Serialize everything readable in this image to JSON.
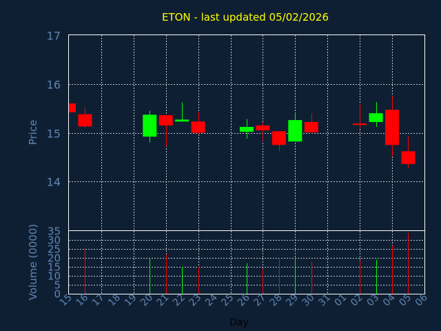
{
  "chart_data": {
    "type": "candlestick",
    "title": "ETON - last updated 05/02/2026",
    "xlabel": "Day",
    "price_panel": {
      "ylabel": "Price",
      "ylim": [
        13.0,
        17.0
      ],
      "yticks": [
        "14",
        "15",
        "16",
        "17"
      ],
      "grid": true
    },
    "volume_panel": {
      "ylabel": "Volume (0000)",
      "ylim": [
        0,
        35
      ],
      "yticks": [
        "0",
        "5",
        "10",
        "15",
        "20",
        "25",
        "30",
        "35"
      ],
      "grid": true
    },
    "colors": {
      "background": "#0f1f33",
      "up": "#00ff00",
      "down": "#ff0000",
      "title": "#ffff00",
      "axis_text": "#5f86b3",
      "grid": "#ffffff"
    },
    "x_ticks": [
      "15",
      "16",
      "17",
      "18",
      "19",
      "20",
      "21",
      "22",
      "23",
      "24",
      "25",
      "26",
      "27",
      "28",
      "29",
      "30",
      "31",
      "01",
      "02",
      "03",
      "04",
      "05",
      "06"
    ],
    "candles": [
      {
        "day": "15",
        "open": 15.6,
        "high": 15.6,
        "low": 15.42,
        "close": 15.42,
        "volume": 0
      },
      {
        "day": "16",
        "open": 15.38,
        "high": 15.52,
        "low": 15.1,
        "close": 15.13,
        "volume": 25
      },
      {
        "day": "20",
        "open": 14.92,
        "high": 15.45,
        "low": 14.8,
        "close": 15.37,
        "volume": 20
      },
      {
        "day": "21",
        "open": 15.36,
        "high": 15.36,
        "low": 14.72,
        "close": 15.15,
        "volume": 22
      },
      {
        "day": "22",
        "open": 15.23,
        "high": 15.62,
        "low": 15.23,
        "close": 15.27,
        "volume": 15
      },
      {
        "day": "23",
        "open": 15.23,
        "high": 15.43,
        "low": 14.97,
        "close": 15.0,
        "volume": 15
      },
      {
        "day": "26",
        "open": 15.02,
        "high": 15.28,
        "low": 14.88,
        "close": 15.12,
        "volume": 17
      },
      {
        "day": "27",
        "open": 15.15,
        "high": 15.22,
        "low": 14.83,
        "close": 15.05,
        "volume": 14
      },
      {
        "day": "28",
        "open": 15.03,
        "high": 15.03,
        "low": 14.62,
        "close": 14.75,
        "volume": 20
      },
      {
        "day": "29",
        "open": 14.82,
        "high": 15.42,
        "low": 14.82,
        "close": 15.26,
        "volume": 20
      },
      {
        "day": "30",
        "open": 15.22,
        "high": 15.4,
        "low": 14.98,
        "close": 15.01,
        "volume": 18
      },
      {
        "day": "02",
        "open": 15.19,
        "high": 15.6,
        "low": 15.08,
        "close": 15.16,
        "volume": 19
      },
      {
        "day": "03",
        "open": 15.22,
        "high": 15.63,
        "low": 15.12,
        "close": 15.4,
        "volume": 19
      },
      {
        "day": "04",
        "open": 15.47,
        "high": 15.75,
        "low": 14.52,
        "close": 14.75,
        "volume": 27
      },
      {
        "day": "05",
        "open": 14.62,
        "high": 14.92,
        "low": 14.27,
        "close": 14.36,
        "volume": 34
      }
    ]
  }
}
